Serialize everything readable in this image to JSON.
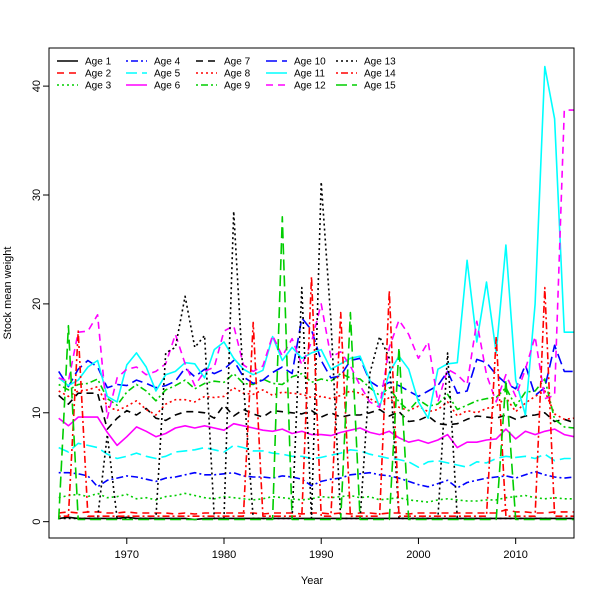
{
  "chart_data": {
    "type": "line",
    "title": "",
    "xlabel": "Year",
    "ylabel": "Stock mean weight",
    "xlim": [
      1962,
      2016
    ],
    "ylim": [
      -1.5,
      43.5
    ],
    "x_ticks": [
      1970,
      1980,
      1990,
      2000,
      2010
    ],
    "y_ticks": [
      0,
      10,
      20,
      30,
      40
    ],
    "legend_position": "top-left",
    "years": [
      1963,
      1964,
      1965,
      1966,
      1967,
      1968,
      1969,
      1970,
      1971,
      1972,
      1973,
      1974,
      1975,
      1976,
      1977,
      1978,
      1979,
      1980,
      1981,
      1982,
      1983,
      1984,
      1985,
      1986,
      1987,
      1988,
      1989,
      1990,
      1991,
      1992,
      1993,
      1994,
      1995,
      1996,
      1997,
      1998,
      1999,
      2000,
      2001,
      2002,
      2003,
      2004,
      2005,
      2006,
      2007,
      2008,
      2009,
      2010,
      2011,
      2012,
      2013,
      2014,
      2015,
      2016
    ],
    "series": [
      {
        "name": "Age 1",
        "color": "#000000",
        "dash": "solid",
        "values": [
          0.3,
          0.4,
          0.3,
          0.3,
          0.3,
          0.3,
          0.3,
          0.4,
          0.3,
          0.3,
          0.3,
          0.3,
          0.3,
          0.3,
          0.2,
          0.3,
          0.3,
          0.3,
          0.3,
          0.3,
          0.3,
          0.3,
          0.3,
          0.3,
          0.3,
          0.3,
          0.3,
          0.3,
          0.3,
          0.3,
          0.3,
          0.3,
          0.3,
          0.3,
          0.3,
          0.3,
          0.3,
          0.3,
          0.3,
          0.3,
          0.3,
          0.3,
          0.3,
          0.3,
          0.3,
          0.3,
          0.3,
          0.3,
          0.3,
          0.3,
          0.3,
          0.3,
          0.3,
          0.3
        ]
      },
      {
        "name": "Age 2",
        "color": "#ff0000",
        "dash": "dashed",
        "values": [
          0.8,
          0.9,
          0.8,
          0.9,
          0.9,
          0.8,
          0.8,
          0.9,
          0.8,
          0.8,
          0.8,
          0.8,
          0.7,
          0.8,
          0.7,
          0.8,
          0.8,
          0.8,
          0.8,
          0.8,
          0.8,
          0.7,
          0.8,
          0.8,
          0.8,
          0.7,
          0.8,
          0.8,
          0.7,
          0.8,
          0.7,
          0.8,
          0.8,
          0.7,
          0.8,
          0.8,
          0.7,
          0.8,
          0.8,
          0.8,
          0.8,
          0.8,
          0.8,
          0.8,
          0.8,
          0.8,
          1.1,
          0.9,
          0.9,
          0.8,
          0.8,
          0.9,
          0.9,
          0.9
        ]
      },
      {
        "name": "Age 3",
        "color": "#00cd00",
        "dash": "dotted",
        "values": [
          2.2,
          2.4,
          2.5,
          2.3,
          2.6,
          2.2,
          2.3,
          2.5,
          2.1,
          2.2,
          2.0,
          2.3,
          2.4,
          2.6,
          2.4,
          2.2,
          2.1,
          2.3,
          2.2,
          2.1,
          2.0,
          2.1,
          2.3,
          2.2,
          2.1,
          2.0,
          2.1,
          2.3,
          2.2,
          2.3,
          2.4,
          2.2,
          2.3,
          2.0,
          2.1,
          2.2,
          2.0,
          1.9,
          1.8,
          2.0,
          2.1,
          2.0,
          1.9,
          1.9,
          2.0,
          2.0,
          2.2,
          2.3,
          2.4,
          2.2,
          2.1,
          2.2,
          2.1,
          2.1
        ]
      },
      {
        "name": "Age 4",
        "color": "#0000ff",
        "dash": "dotdash",
        "values": [
          4.5,
          4.5,
          4.4,
          4.2,
          3.2,
          3.8,
          4.0,
          4.2,
          4.1,
          3.9,
          3.7,
          4.0,
          4.1,
          4.3,
          4.5,
          4.3,
          4.3,
          4.4,
          4.5,
          4.2,
          4.1,
          4.1,
          4.0,
          4.2,
          4.1,
          3.9,
          3.3,
          3.7,
          3.9,
          4.0,
          4.3,
          4.4,
          4.5,
          4.3,
          4.2,
          4.0,
          3.7,
          3.4,
          3.2,
          3.5,
          3.8,
          3.1,
          3.6,
          3.8,
          4.0,
          4.1,
          4.2,
          4.0,
          4.3,
          4.6,
          4.3,
          4.1,
          4.0,
          4.1
        ]
      },
      {
        "name": "Age 5",
        "color": "#00ffff",
        "dash": "longdash",
        "values": [
          6.8,
          6.4,
          7.2,
          7.0,
          6.8,
          6.2,
          5.8,
          6.0,
          6.3,
          6.0,
          5.8,
          6.0,
          6.4,
          6.5,
          6.6,
          6.8,
          6.6,
          6.4,
          7.0,
          6.8,
          6.5,
          6.5,
          6.3,
          6.2,
          6.0,
          6.0,
          5.8,
          5.9,
          6.1,
          6.3,
          6.6,
          6.5,
          6.2,
          6.0,
          5.8,
          5.7,
          5.5,
          5.0,
          5.5,
          5.6,
          5.4,
          5.2,
          5.0,
          5.5,
          5.4,
          5.8,
          6.0,
          5.9,
          6.0,
          5.8,
          6.2,
          5.6,
          5.8,
          5.8
        ]
      },
      {
        "name": "Age 6",
        "color": "#ff00ff",
        "dash": "solid",
        "values": [
          9.5,
          8.8,
          9.6,
          9.6,
          9.6,
          8.2,
          7.0,
          7.8,
          8.7,
          8.3,
          7.8,
          8.1,
          8.6,
          8.8,
          8.6,
          8.8,
          8.6,
          8.4,
          9.0,
          8.8,
          8.6,
          8.4,
          8.3,
          8.5,
          8.1,
          8.3,
          8.0,
          8.0,
          7.9,
          8.2,
          8.4,
          8.6,
          8.2,
          8.0,
          8.3,
          7.7,
          7.3,
          7.5,
          7.2,
          7.5,
          8.0,
          6.8,
          7.3,
          7.3,
          7.5,
          7.6,
          8.5,
          7.6,
          8.3,
          8.0,
          8.3,
          8.5,
          8.0,
          7.8
        ]
      },
      {
        "name": "Age 7",
        "color": "#000000",
        "dash": "dashed",
        "values": [
          11.6,
          10.8,
          11.8,
          11.8,
          11.8,
          8.5,
          9.5,
          10.2,
          9.8,
          10.4,
          9.5,
          9.3,
          9.8,
          10.1,
          10.1,
          10.0,
          9.5,
          10.7,
          9.7,
          10.3,
          9.9,
          9.6,
          10.2,
          10.1,
          10.0,
          9.9,
          10.2,
          9.6,
          10.0,
          9.6,
          9.8,
          9.8,
          10.0,
          10.3,
          9.7,
          10.1,
          9.2,
          9.3,
          9.7,
          9.0,
          8.9,
          9.0,
          9.4,
          9.7,
          9.6,
          9.5,
          9.8,
          9.4,
          9.7,
          9.8,
          10.0,
          9.2,
          9.4,
          9.1
        ]
      },
      {
        "name": "Age 8",
        "color": "#ff0000",
        "dash": "dotted",
        "values": [
          12.0,
          11.5,
          12.0,
          12.1,
          12.4,
          10.6,
          10.2,
          10.6,
          11.1,
          10.3,
          9.8,
          10.8,
          11.2,
          11.2,
          11.0,
          11.5,
          11.4,
          11.5,
          12.3,
          11.8,
          11.7,
          12.1,
          11.6,
          11.9,
          11.8,
          11.7,
          11.4,
          11.5,
          11.3,
          11.6,
          12.0,
          11.8,
          11.3,
          10.8,
          11.4,
          10.5,
          10.2,
          10.6,
          10.1,
          10.3,
          11.0,
          9.7,
          10.2,
          10.0,
          10.4,
          10.6,
          11.4,
          10.1,
          10.9,
          11.5,
          12.0,
          9.9,
          9.4,
          9.5
        ]
      },
      {
        "name": "Age 9",
        "color": "#00cd00",
        "dash": "dotdash",
        "values": [
          12.6,
          12.1,
          12.6,
          12.7,
          13.1,
          11.3,
          10.7,
          11.9,
          12.6,
          12.0,
          11.1,
          12.1,
          12.5,
          13.0,
          12.2,
          12.7,
          12.9,
          12.8,
          13.6,
          12.7,
          12.6,
          13.1,
          12.7,
          12.6,
          13.3,
          13.6,
          12.8,
          13.1,
          12.9,
          13.6,
          13.2,
          13.1,
          12.3,
          11.6,
          12.3,
          11.0,
          10.2,
          11.2,
          10.6,
          10.8,
          11.7,
          10.3,
          10.7,
          11.1,
          11.3,
          11.4,
          12.3,
          10.6,
          11.9,
          12.0,
          13.1,
          9.4,
          8.7,
          8.6
        ]
      },
      {
        "name": "Age 10",
        "color": "#0000ff",
        "dash": "longdash",
        "values": [
          13.8,
          12.4,
          14.0,
          14.8,
          14.2,
          12.3,
          12.6,
          12.5,
          13.0,
          12.7,
          12.3,
          12.5,
          12.9,
          14.1,
          13.3,
          14.0,
          13.6,
          14.0,
          14.8,
          13.3,
          12.7,
          13.0,
          13.7,
          14.2,
          13.6,
          18.7,
          17.6,
          14.8,
          13.2,
          13.4,
          14.8,
          15.0,
          12.9,
          12.3,
          12.8,
          12.5,
          12.0,
          11.5,
          12.0,
          12.5,
          13.8,
          11.8,
          12.0,
          14.9,
          14.6,
          13.5,
          12.7,
          12.2,
          14.4,
          11.6,
          12.3,
          16.2,
          13.8,
          13.8
        ]
      },
      {
        "name": "Age 11",
        "color": "#00ffff",
        "dash": "solid",
        "values": [
          13.2,
          12.5,
          13.0,
          14.2,
          14.8,
          11.5,
          11.0,
          14.4,
          15.5,
          14.2,
          12.0,
          13.5,
          13.8,
          14.6,
          14.5,
          13.2,
          15.8,
          16.5,
          15.0,
          14.0,
          13.5,
          13.9,
          17.0,
          14.8,
          16.0,
          15.0,
          15.5,
          15.8,
          14.0,
          14.5,
          15.0,
          15.2,
          13.0,
          10.5,
          13.7,
          15.2,
          14.0,
          11.0,
          9.5,
          14.0,
          14.5,
          14.6,
          24.0,
          16.5,
          22.0,
          15.5,
          25.4,
          13.0,
          9.8,
          20.0,
          41.8,
          37.0,
          17.4,
          17.4
        ]
      },
      {
        "name": "Age 12",
        "color": "#ff00ff",
        "dash": "dashed",
        "values": [
          13.2,
          12.9,
          17.4,
          17.5,
          19.0,
          9.5,
          13.2,
          14.0,
          14.2,
          13.5,
          13.8,
          14.5,
          17.2,
          14.5,
          12.5,
          13.8,
          14.2,
          17.5,
          18.0,
          14.4,
          13.8,
          14.3,
          17.1,
          15.2,
          16.8,
          14.4,
          16.5,
          20.0,
          15.1,
          15.6,
          14.3,
          12.5,
          11.0,
          10.5,
          16.0,
          18.5,
          17.2,
          15.0,
          16.5,
          11.0,
          14.0,
          13.5,
          12.6,
          18.4,
          13.5,
          11.0,
          13.5,
          11.5,
          14.0,
          17.0,
          11.3,
          11.6,
          37.8,
          37.8
        ]
      },
      {
        "name": "Age 13",
        "color": "#000000",
        "dash": "dotted",
        "values": [
          0.3,
          0.3,
          0.3,
          0.3,
          0.3,
          8.0,
          0.3,
          0.3,
          0.3,
          0.3,
          0.3,
          15.5,
          16.0,
          20.7,
          16.0,
          17.1,
          0.3,
          0.3,
          28.5,
          12.8,
          0.3,
          0.3,
          0.3,
          0.3,
          0.3,
          21.5,
          0.3,
          31.2,
          18.5,
          0.3,
          0.3,
          0.3,
          13.6,
          17.0,
          15.0,
          0.3,
          0.3,
          0.3,
          0.3,
          0.3,
          15.5,
          0.3,
          0.3,
          0.3,
          0.3,
          0.3,
          0.3,
          0.3,
          0.3,
          0.3,
          0.3,
          0.3,
          0.3,
          0.3
        ]
      },
      {
        "name": "Age 14",
        "color": "#ff0000",
        "dash": "dotdash",
        "values": [
          0.5,
          0.5,
          17.5,
          0.5,
          0.5,
          0.5,
          0.5,
          0.5,
          0.5,
          0.5,
          0.5,
          0.5,
          0.5,
          0.5,
          0.5,
          0.5,
          0.5,
          0.5,
          0.5,
          0.5,
          18.3,
          0.5,
          0.5,
          0.5,
          0.5,
          0.5,
          22.5,
          0.5,
          0.5,
          19.2,
          0.5,
          0.5,
          0.5,
          0.5,
          21.2,
          0.5,
          0.5,
          0.5,
          0.5,
          0.5,
          0.5,
          0.5,
          0.5,
          0.5,
          0.5,
          17.0,
          0.5,
          0.5,
          0.5,
          0.5,
          21.5,
          0.5,
          0.5,
          0.5
        ]
      },
      {
        "name": "Age 15",
        "color": "#00cd00",
        "dash": "longdash",
        "values": [
          0.2,
          18.0,
          0.2,
          0.2,
          0.2,
          0.2,
          0.2,
          0.2,
          0.2,
          0.2,
          0.2,
          0.2,
          0.2,
          0.2,
          0.2,
          0.2,
          0.2,
          0.2,
          0.2,
          0.2,
          0.2,
          0.2,
          0.2,
          28.0,
          0.2,
          0.2,
          0.2,
          0.2,
          0.2,
          0.2,
          19.2,
          0.2,
          0.2,
          0.2,
          0.2,
          16.0,
          0.2,
          0.2,
          0.2,
          0.2,
          0.2,
          0.2,
          0.2,
          0.2,
          0.2,
          0.2,
          13.0,
          0.2,
          0.2,
          0.2,
          0.2,
          0.2,
          0.2,
          0.2
        ]
      }
    ]
  }
}
